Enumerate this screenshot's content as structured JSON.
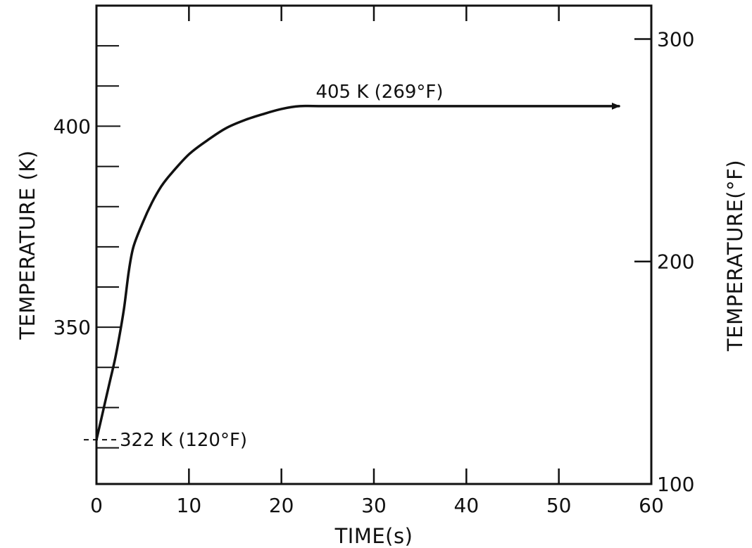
{
  "chart_data": {
    "type": "line",
    "title": "",
    "xlabel": "TIME(s)",
    "ylabel": "TEMPERATURE (K)",
    "y2label": "TEMPERATURE(°F)",
    "xlim": [
      0,
      60
    ],
    "ylim": [
      311,
      430
    ],
    "y2lim": [
      100,
      315
    ],
    "x_ticks": [
      0,
      10,
      20,
      30,
      40,
      50,
      60
    ],
    "x_tick_labels": [
      "0",
      "10",
      "20",
      "30",
      "40",
      "50",
      "60"
    ],
    "y_ticks": [
      350,
      400
    ],
    "y_tick_labels": [
      "350",
      "400"
    ],
    "y_minor_step": 10,
    "y2_ticks": [
      100,
      200,
      300
    ],
    "y2_tick_labels": [
      "100",
      "200",
      "300"
    ],
    "grid": false,
    "series": [
      {
        "x": [
          0,
          0.5,
          1,
          1.5,
          2,
          2.5,
          3,
          3.5,
          4,
          5,
          6,
          7,
          8,
          10,
          12,
          14,
          16,
          18,
          20,
          22,
          24,
          30,
          40,
          50,
          56
        ],
        "y": [
          322,
          327,
          332,
          337,
          342,
          348,
          355,
          364,
          370,
          376,
          381,
          385,
          388,
          393,
          396.5,
          399.5,
          401.5,
          403,
          404.3,
          405,
          405,
          405,
          405,
          405,
          405
        ]
      }
    ],
    "arrow_end": {
      "x": 56.5,
      "y": 405
    },
    "annotations": [
      {
        "text": "405 K (269°F)",
        "x": 30,
        "y": 405
      },
      {
        "text": "322 K (120°F)",
        "x": 0,
        "y": 322
      }
    ]
  }
}
